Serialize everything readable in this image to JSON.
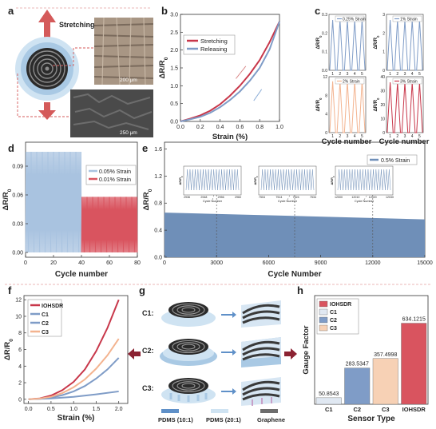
{
  "panel_letters": [
    "a",
    "b",
    "c",
    "d",
    "e",
    "f",
    "g",
    "h"
  ],
  "colors": {
    "red": "#c8374a",
    "blue": "#7f9cc7",
    "lightblue": "#a9c3e0",
    "peach": "#f3b38f",
    "bar_c2": "#7f9cc7",
    "bar_c3": "#f7d1b5",
    "bar_ioh": "#d9545f",
    "bar_c1": "#e0e8f2",
    "steel": "#6f8fb8"
  },
  "panel_a": {
    "stretching_label": "Stretching",
    "scale_top": "200 μm",
    "scale_bottom": "250 μm"
  },
  "panel_g": {
    "rows": [
      "C1:",
      "C2:",
      "C3:"
    ],
    "legend": [
      "PDMS (10:1)",
      "PDMS (20:1)",
      "Graphene"
    ]
  },
  "chart_data": [
    {
      "id": "b",
      "type": "line",
      "xlabel": "Strain (%)",
      "ylabel": "ΔR/R0",
      "xlim": [
        0.0,
        1.0
      ],
      "ylim": [
        0.0,
        3.0
      ],
      "xticks": [
        "0.0",
        "0.2",
        "0.4",
        "0.6",
        "0.8",
        "1.0"
      ],
      "yticks": [
        "0.0",
        "0.5",
        "1.0",
        "1.5",
        "2.0",
        "2.5",
        "3.0"
      ],
      "legend_position": "top-left",
      "series": [
        {
          "name": "Stretching",
          "color": "#c8374a",
          "x": [
            0,
            0.1,
            0.2,
            0.3,
            0.4,
            0.5,
            0.6,
            0.7,
            0.8,
            0.9,
            1.0
          ],
          "y": [
            0,
            0.08,
            0.17,
            0.3,
            0.48,
            0.72,
            1.0,
            1.33,
            1.72,
            2.22,
            2.8
          ]
        },
        {
          "name": "Releasing",
          "color": "#7f9cc7",
          "x": [
            0,
            0.1,
            0.2,
            0.3,
            0.4,
            0.5,
            0.6,
            0.7,
            0.8,
            0.9,
            1.0
          ],
          "y": [
            0,
            0.06,
            0.13,
            0.24,
            0.4,
            0.6,
            0.84,
            1.14,
            1.5,
            2.02,
            2.8
          ]
        }
      ]
    },
    {
      "id": "c",
      "type": "line",
      "xlabel": "Cycle number",
      "ylabel": "ΔR/R0",
      "subplots": [
        {
          "label": "0.25% Strain",
          "color": "#7f9cc7",
          "ymax": 0.3,
          "yticks": [
            "0.0",
            "0.1",
            "0.2",
            "0.3"
          ],
          "peak": 0.27,
          "cycles": 5
        },
        {
          "label": "1% Strain",
          "color": "#7f9cc7",
          "ymax": 3,
          "yticks": [
            "0",
            "1",
            "2",
            "3"
          ],
          "peak": 2.7,
          "cycles": 5
        },
        {
          "label": "2% Strain",
          "color": "#f3b38f",
          "ymax": 12,
          "yticks": [
            "0",
            "4",
            "8",
            "12"
          ],
          "peak": 11,
          "cycles": 5
        },
        {
          "label": "3% Strain",
          "color": "#c8374a",
          "ymax": 40,
          "yticks": [
            "0",
            "10",
            "20",
            "30",
            "40"
          ],
          "peak": 36,
          "cycles": 5
        }
      ],
      "xticks": [
        "1",
        "2",
        "3",
        "4",
        "5"
      ]
    },
    {
      "id": "d",
      "type": "line",
      "xlabel": "Cycle number",
      "ylabel": "ΔR/R0",
      "xlim": [
        0,
        80
      ],
      "ylim": [
        -0.005,
        0.115
      ],
      "xticks": [
        "0",
        "20",
        "40",
        "60",
        "80"
      ],
      "yticks": [
        "0.00",
        "0.03",
        "0.06",
        "0.09"
      ],
      "legend_position": "center-right",
      "series": [
        {
          "name": "0.05% Strain",
          "color": "#a9c3e0",
          "x_range": [
            0,
            40
          ],
          "amplitude": 0.105
        },
        {
          "name": "0.01% Strain",
          "color": "#d9545f",
          "x_range": [
            40,
            80
          ],
          "amplitude": 0.058
        }
      ]
    },
    {
      "id": "e",
      "type": "area",
      "xlabel": "Cycle Number",
      "ylabel": "ΔR/R0",
      "xlim": [
        0,
        15000
      ],
      "ylim": [
        0.0,
        1.7
      ],
      "xticks": [
        "0",
        "3000",
        "6000",
        "9000",
        "12000",
        "15000"
      ],
      "yticks": [
        "0.0",
        "0.4",
        "0.8",
        "1.2",
        "1.6"
      ],
      "legend_position": "top-right",
      "series": [
        {
          "name": "0.5% Strain",
          "color": "#6f8fb8",
          "x": [
            0,
            15000
          ],
          "y": [
            0.66,
            0.56
          ]
        }
      ],
      "insets": [
        {
          "xticks": [
            "2936",
            "2948",
            "2956",
            "2960"
          ],
          "xlabel": "Cycle Number",
          "ylabel": "ΔR/R0"
        },
        {
          "xticks": [
            "7504",
            "7514",
            "7524",
            "7534"
          ],
          "xlabel": "Cycle Number",
          "ylabel": "ΔR/R0"
        },
        {
          "xticks": [
            "12000",
            "12010",
            "12020",
            "12030"
          ],
          "xlabel": "Cycle Number",
          "ylabel": "ΔR/R0"
        }
      ]
    },
    {
      "id": "f",
      "type": "line",
      "xlabel": "Strain (%)",
      "ylabel": "ΔR/R0",
      "xlim": [
        -0.1,
        2.2
      ],
      "ylim": [
        -0.5,
        12.5
      ],
      "xticks": [
        "0.0",
        "0.5",
        "1.0",
        "1.5",
        "2.0"
      ],
      "yticks": [
        "0",
        "2",
        "4",
        "6",
        "8",
        "10",
        "12"
      ],
      "legend_position": "top-left",
      "series": [
        {
          "name": "IOHSDR",
          "color": "#c8374a",
          "x": [
            0,
            0.25,
            0.5,
            0.75,
            1.0,
            1.25,
            1.5,
            1.75,
            2.0
          ],
          "y": [
            0,
            0.1,
            0.45,
            1.1,
            2.1,
            3.6,
            5.8,
            8.6,
            12.0
          ]
        },
        {
          "name": "C1",
          "color": "#7f9cc7",
          "x": [
            0,
            0.5,
            1.0,
            1.5,
            2.0
          ],
          "y": [
            0,
            0.1,
            0.3,
            0.6,
            0.95
          ]
        },
        {
          "name": "C2",
          "color": "#7f9cc7",
          "x": [
            0,
            0.25,
            0.5,
            0.75,
            1.0,
            1.25,
            1.5,
            1.75,
            2.0
          ],
          "y": [
            0,
            0.05,
            0.2,
            0.5,
            0.95,
            1.6,
            2.5,
            3.6,
            5.0
          ]
        },
        {
          "name": "C3",
          "color": "#f3b38f",
          "x": [
            0,
            0.25,
            0.5,
            0.75,
            1.0,
            1.25,
            1.5,
            1.75,
            2.0
          ],
          "y": [
            0,
            0.08,
            0.3,
            0.75,
            1.45,
            2.4,
            3.7,
            5.3,
            7.3
          ]
        }
      ]
    },
    {
      "id": "h",
      "type": "bar",
      "xlabel": "Sensor Type",
      "ylabel": "Gauge Factor",
      "categories": [
        "C1",
        "C2",
        "C3",
        "IOHSDR"
      ],
      "values": [
        50.8543,
        283.5347,
        357.4998,
        634.1215
      ],
      "value_labels": [
        "50.8543",
        "283.5347",
        "357.4998",
        "634.1215"
      ],
      "ylim": [
        0,
        850
      ],
      "legend_position": "top-left",
      "legend": [
        "IOHSDR",
        "C1",
        "C2",
        "C3"
      ]
    }
  ]
}
